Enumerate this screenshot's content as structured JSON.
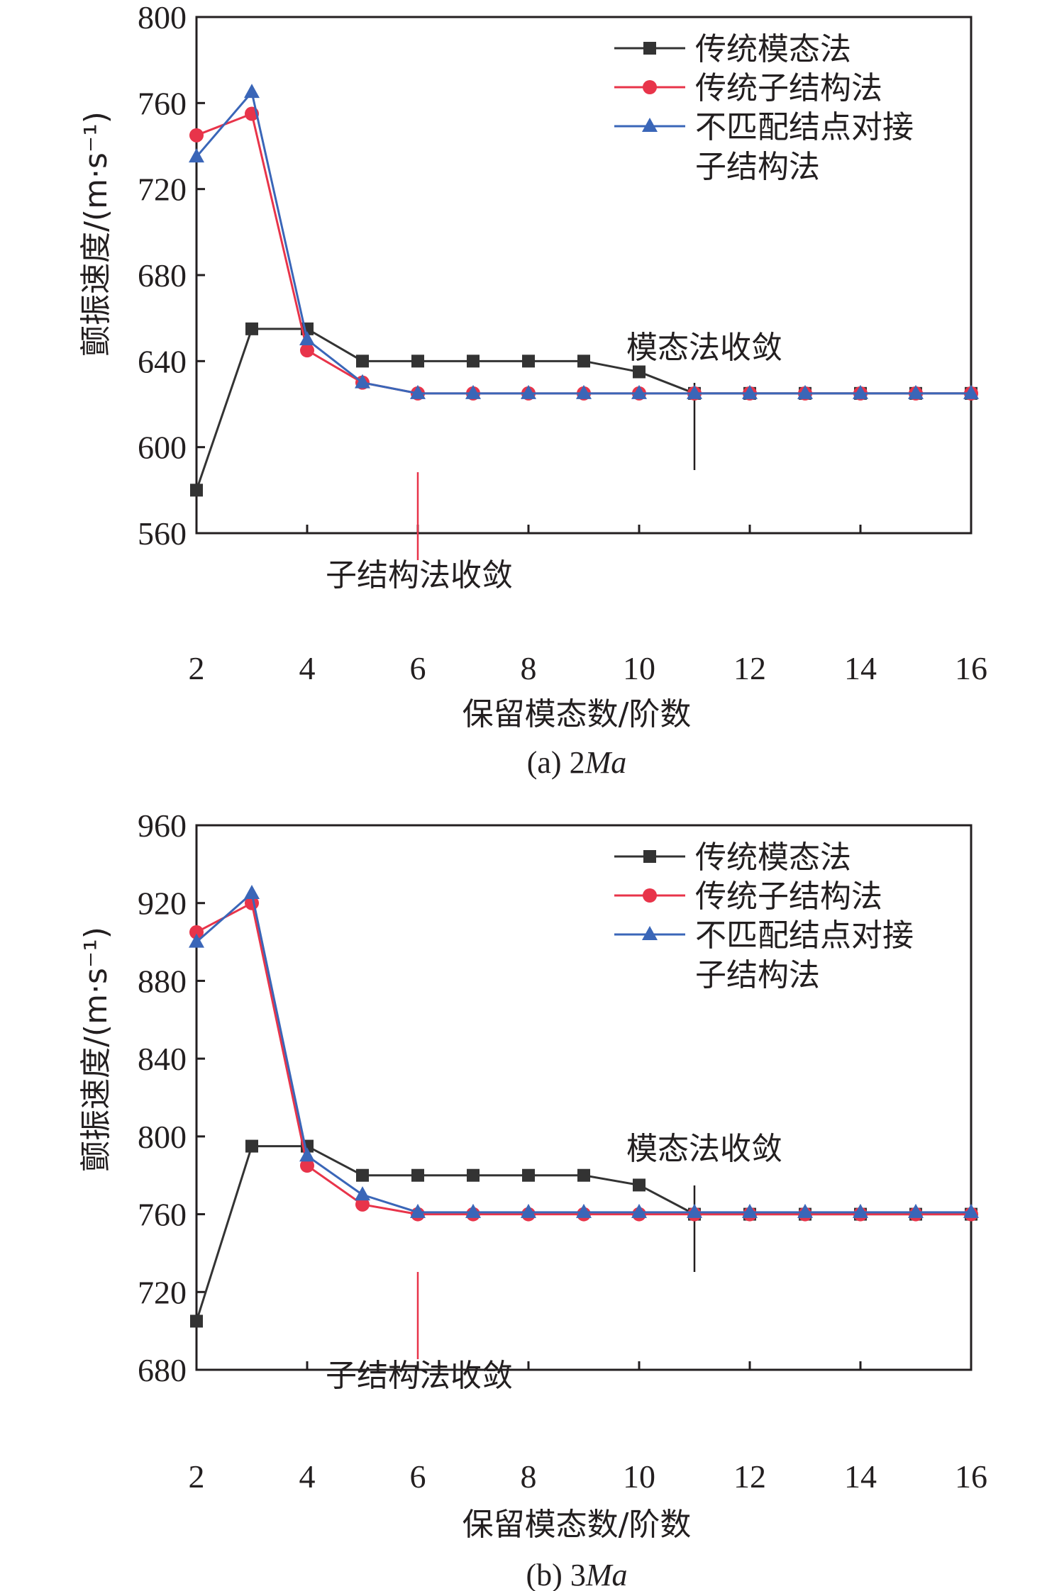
{
  "colors": {
    "black": "#333333",
    "red": "#e8344a",
    "blue": "#3a66b8",
    "axis": "#231f20"
  },
  "legend": [
    "传统模态法",
    "传统子结构法",
    "不匹配结点对接",
    "子结构法"
  ],
  "chart_data": [
    {
      "type": "line",
      "caption_prefix": "(a) 2",
      "caption_italic": "Ma",
      "xlabel": "保留模态数/阶数",
      "ylabel": "颤振速度/(m·s⁻¹)",
      "xlim": [
        2,
        16
      ],
      "ylim": [
        560,
        800
      ],
      "xticks": [
        2,
        4,
        6,
        8,
        10,
        12,
        14,
        16
      ],
      "yticks": [
        560,
        600,
        640,
        680,
        720,
        760,
        800
      ],
      "x": [
        2,
        3,
        4,
        5,
        6,
        7,
        8,
        9,
        10,
        11,
        12,
        13,
        14,
        15,
        16
      ],
      "series": [
        {
          "name": "传统模态法",
          "marker": "square",
          "color": "#333333",
          "values": [
            580,
            655,
            655,
            640,
            640,
            640,
            640,
            640,
            635,
            625,
            625,
            625,
            625,
            625,
            625
          ]
        },
        {
          "name": "传统子结构法",
          "marker": "circle",
          "color": "#e8344a",
          "values": [
            745,
            755,
            645,
            630,
            625,
            625,
            625,
            625,
            625,
            625,
            625,
            625,
            625,
            625,
            625
          ]
        },
        {
          "name": "不匹配结点对接子结构法",
          "marker": "triangle",
          "color": "#3a66b8",
          "values": [
            735,
            765,
            650,
            630,
            625,
            625,
            625,
            625,
            625,
            625,
            625,
            625,
            625,
            625,
            625
          ]
        }
      ],
      "annotations": [
        {
          "text": "模态法收敛",
          "x": 11,
          "color": "#231f20"
        },
        {
          "text": "子结构法收敛",
          "x": 6,
          "color": "#e8344a"
        }
      ],
      "legend_position": "top-right"
    },
    {
      "type": "line",
      "caption_prefix": "(b) 3",
      "caption_italic": "Ma",
      "xlabel": "保留模态数/阶数",
      "ylabel": "颤振速度/(m·s⁻¹)",
      "xlim": [
        2,
        16
      ],
      "ylim": [
        680,
        960
      ],
      "xticks": [
        2,
        4,
        6,
        8,
        10,
        12,
        14,
        16
      ],
      "yticks": [
        680,
        720,
        760,
        800,
        840,
        880,
        920,
        960
      ],
      "x": [
        2,
        3,
        4,
        5,
        6,
        7,
        8,
        9,
        10,
        11,
        12,
        13,
        14,
        15,
        16
      ],
      "series": [
        {
          "name": "传统模态法",
          "marker": "square",
          "color": "#333333",
          "values": [
            705,
            795,
            795,
            780,
            780,
            780,
            780,
            780,
            775,
            760,
            760,
            760,
            760,
            760,
            760
          ]
        },
        {
          "name": "传统子结构法",
          "marker": "circle",
          "color": "#e8344a",
          "values": [
            905,
            920,
            785,
            765,
            760,
            760,
            760,
            760,
            760,
            760,
            760,
            760,
            760,
            760,
            760
          ]
        },
        {
          "name": "不匹配结点对接子结构法",
          "marker": "triangle",
          "color": "#3a66b8",
          "values": [
            900,
            925,
            790,
            770,
            761,
            761,
            761,
            761,
            761,
            761,
            761,
            761,
            761,
            761,
            761
          ]
        }
      ],
      "annotations": [
        {
          "text": "模态法收敛",
          "x": 11,
          "color": "#231f20"
        },
        {
          "text": "子结构法收敛",
          "x": 6,
          "color": "#e8344a"
        }
      ],
      "legend_position": "top-right"
    }
  ]
}
